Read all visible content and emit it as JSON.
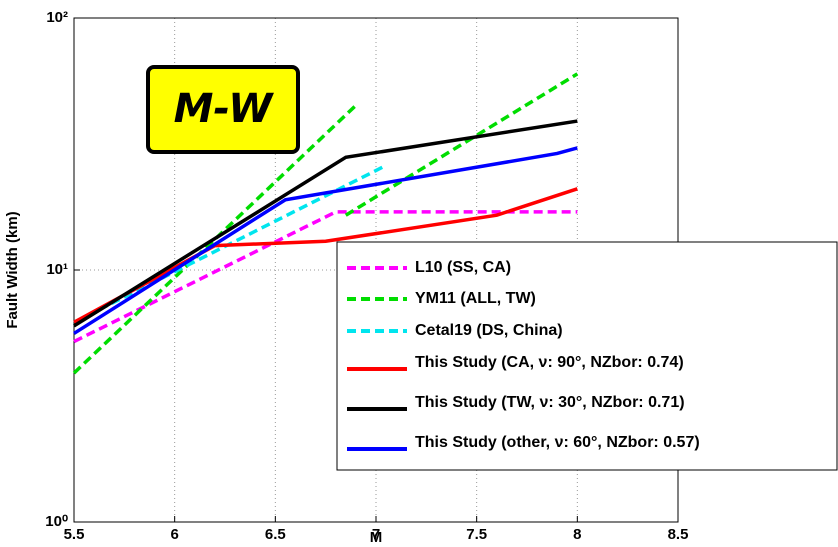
{
  "chart_data": {
    "type": "line",
    "annotation": "M-W",
    "xlabel": "M",
    "ylabel": "Fault Width (km)",
    "xlim": [
      5.5,
      8.5
    ],
    "xticks": [
      5.5,
      6,
      6.5,
      7,
      7.5,
      8,
      8.5
    ],
    "ylim": [
      1,
      100
    ],
    "yscale": "log",
    "yticks": [
      {
        "value": 1,
        "label": "10⁰"
      },
      {
        "value": 10,
        "label": "10¹"
      },
      {
        "value": 100,
        "label": "10²"
      }
    ],
    "grid": true,
    "legend": "lower right",
    "series": [
      {
        "name": "L10 (SS, CA)",
        "color": "#ff00ff",
        "dashed": true,
        "x": [
          5.5,
          6.8,
          8
        ],
        "values": [
          5.2,
          17,
          17
        ]
      },
      {
        "name": "YM11 (ALL, TW)",
        "color": "#00dd00",
        "dashed": true,
        "x": [
          5.5,
          6.9,
          null,
          6.85,
          8
        ],
        "values": [
          3.9,
          45,
          null,
          16.5,
          60
        ]
      },
      {
        "name": "Cetal19 (DS, China)",
        "color": "#00e5ee",
        "dashed": true,
        "x": [
          5.5,
          7.05
        ],
        "values": [
          6.2,
          26
        ]
      },
      {
        "name": "This Study (CA, ν: 90°, NZbor: 0.74)",
        "color": "#ff0000",
        "dashed": false,
        "x": [
          5.5,
          6.2,
          6.75,
          7.6,
          8
        ],
        "values": [
          6.2,
          12.5,
          13,
          16.5,
          21
        ]
      },
      {
        "name": "This Study (TW, ν: 30°, NZbor: 0.71)",
        "color": "#000000",
        "dashed": false,
        "x": [
          5.5,
          6.85,
          8
        ],
        "values": [
          6,
          28,
          39
        ]
      },
      {
        "name": "This Study (other, ν: 60°, NZbor: 0.57)",
        "color": "#0000ff",
        "dashed": false,
        "x": [
          5.5,
          6.55,
          7.9,
          8
        ],
        "values": [
          5.6,
          19,
          29,
          30.5
        ]
      }
    ]
  }
}
